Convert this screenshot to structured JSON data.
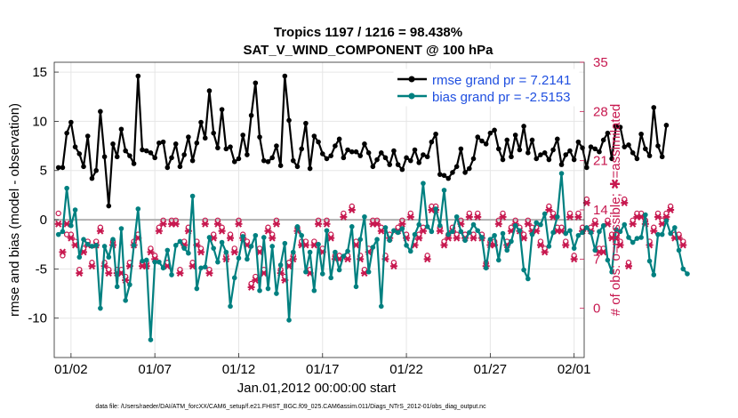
{
  "chart_data": {
    "type": "line",
    "title": "Tropics 1197 / 1216 = 98.438%",
    "subtitle": "SAT_V_WIND_COMPONENT @ 100 hPa",
    "xlabel": "Jan.01,2012 00:00:00 start",
    "ylabel": "rmse and bias (model - observation)",
    "ylabel_right": "# of obs: o=possible; ✱=assimilated",
    "ylim": [
      -14,
      16
    ],
    "ylim_right": [
      -7,
      35
    ],
    "x_range_days": [
      0,
      31.6
    ],
    "x_tick_labels": [
      {
        "day": 1,
        "label": "01/02"
      },
      {
        "day": 6,
        "label": "01/07"
      },
      {
        "day": 11,
        "label": "01/12"
      },
      {
        "day": 16,
        "label": "01/17"
      },
      {
        "day": 21,
        "label": "01/22"
      },
      {
        "day": 26,
        "label": "01/27"
      },
      {
        "day": 31,
        "label": "02/01"
      }
    ],
    "y_ticks": [
      -10,
      -5,
      0,
      5,
      10,
      15
    ],
    "y_ticks_right": [
      0,
      7,
      14,
      21,
      28,
      35
    ],
    "x_step_days": 0.25,
    "series": [
      {
        "name": "rmse grand pr = 7.2141",
        "color": "#000000",
        "values": [
          5.3,
          5.3,
          8.8,
          9.9,
          7.4,
          6.7,
          5.4,
          8.5,
          4.2,
          5.0,
          11.0,
          6.4,
          1.4,
          7.7,
          6.4,
          9.2,
          7.0,
          6.5,
          5.7,
          14.6,
          7.1,
          7.0,
          6.8,
          6.3,
          7.8,
          7.9,
          5.3,
          6.3,
          7.7,
          5.4,
          6.6,
          8.4,
          6.0,
          7.8,
          9.9,
          8.3,
          13.1,
          8.8,
          7.3,
          11.2,
          7.2,
          7.4,
          5.9,
          6.2,
          8.6,
          6.6,
          10.6,
          13.9,
          8.4,
          6.0,
          5.9,
          6.3,
          7.5,
          5.5,
          14.6,
          10.1,
          6.0,
          5.4,
          7.2,
          9.8,
          5.2,
          8.5,
          7.9,
          6.7,
          6.2,
          6.5,
          7.5,
          8.2,
          6.3,
          7.1,
          6.9,
          6.9,
          6.5,
          7.7,
          6.8,
          5.4,
          6.1,
          6.8,
          6.3,
          5.6,
          7.0,
          5.6,
          5.1,
          6.3,
          6.0,
          7.1,
          5.8,
          6.6,
          6.4,
          7.9,
          8.7,
          4.6,
          4.5,
          4.2,
          4.8,
          5.4,
          7.2,
          4.8,
          5.2,
          6.2,
          8.4,
          8.0,
          7.7,
          8.8,
          9.1,
          7.2,
          6.1,
          8.1,
          6.4,
          8.6,
          7.1,
          9.5,
          6.8,
          8.1,
          6.2,
          6.6,
          6.8,
          6.1,
          7.1,
          8.2,
          5.6,
          6.6,
          7.0,
          6.1,
          7.9,
          7.3,
          5.3,
          7.4,
          7.2,
          6.9,
          8.1,
          8.8,
          6.2,
          9.5,
          9.4,
          7.4,
          7.6,
          6.8,
          6.2,
          8.7,
          7.2,
          6.5,
          11.4,
          7.5,
          6.4,
          9.6
        ]
      },
      {
        "name": "bias grand pr = -2.5153",
        "color": "#008080",
        "values": [
          -1.5,
          -1.2,
          3.2,
          -0.6,
          1.0,
          -3.8,
          -2.0,
          -2.5,
          -2.7,
          -2.6,
          -9.0,
          -2.7,
          -3.8,
          -2.0,
          -6.8,
          -0.9,
          -8.2,
          -6.6,
          -2.6,
          1.1,
          -4.2,
          -4.1,
          -12.2,
          -4.3,
          -4.3,
          -4.9,
          -3.1,
          -5.6,
          -2.6,
          -2.2,
          -2.9,
          -3.4,
          2.4,
          -7.0,
          -4.9,
          -4.8,
          -1.8,
          -2.9,
          -4.3,
          -2.3,
          -3.3,
          -8.8,
          -5.9,
          -3.9,
          -1.7,
          -4.0,
          -2.7,
          -1.6,
          -7.2,
          -1.8,
          -7.0,
          -2.7,
          -7.5,
          -4.6,
          -2.4,
          -10.2,
          -3.3,
          -0.7,
          -1.6,
          -5.3,
          -3.3,
          -7.2,
          -2.5,
          -5.5,
          -1.1,
          -5.9,
          -3.3,
          -5.1,
          -3.7,
          -3.2,
          -0.7,
          -6.8,
          -2.0,
          0.3,
          -5.3,
          -2.8,
          -2.0,
          -8.8,
          -0.8,
          -2.1,
          -1.1,
          -1.3,
          -0.9,
          -2.6,
          -3.2,
          -1.5,
          -0.5,
          3.7,
          -0.7,
          -1.2,
          1.1,
          -0.6,
          3.0,
          -1.5,
          -1.2,
          0.3,
          -1.2,
          -2.1,
          -1.3,
          -0.5,
          -1.1,
          -1.8,
          -4.9,
          -2.0,
          -1.6,
          -4.1,
          -1.4,
          -3.1,
          -2.2,
          -0.6,
          -1.1,
          -5.1,
          -6.0,
          -1.5,
          -0.3,
          -0.5,
          0.6,
          -2.7,
          -1.3,
          0.3,
          4.7,
          -1.4,
          -1.1,
          -2.9,
          -1.6,
          -1.3,
          -0.8,
          -1.3,
          -3.1,
          -1.2,
          -0.6,
          -4.1,
          -5.3,
          -1.0,
          -1.2,
          -0.5,
          -1.8,
          -2.3,
          -1.9,
          -1.8,
          0.5,
          -4.2,
          -5.6,
          -1.5,
          -1.5,
          -0.1,
          -1.4,
          -0.8,
          -3.1,
          -5.0,
          -5.5
        ]
      }
    ],
    "obs_possible": [
      13,
      7,
      10,
      10,
      9,
      5,
      8,
      9,
      6,
      9,
      11,
      6,
      5,
      9,
      5,
      5,
      4,
      6,
      9,
      10,
      6,
      6,
      8,
      7,
      11,
      12,
      6,
      12,
      12,
      5,
      9,
      11,
      6,
      9,
      8,
      12,
      5,
      10,
      12,
      11,
      7,
      10,
      8,
      12,
      10,
      9,
      3,
      4,
      8,
      5,
      11,
      10,
      12,
      5,
      4,
      6,
      7,
      11,
      9,
      9,
      5,
      9,
      12,
      8,
      12,
      10,
      7,
      7,
      13,
      7,
      14,
      9,
      7,
      5,
      8,
      12,
      12,
      11,
      7,
      10,
      6,
      11,
      12,
      10,
      13,
      9,
      10,
      11,
      7,
      14,
      14,
      11,
      9,
      10,
      11,
      10,
      12,
      10,
      13,
      10,
      13,
      10,
      6,
      9,
      9,
      12,
      13,
      9,
      11,
      12,
      11,
      10,
      12,
      11,
      11,
      9,
      8,
      14,
      13,
      11,
      11,
      9,
      13,
      7,
      13,
      11,
      15,
      11,
      12,
      8,
      8,
      12,
      10,
      10,
      9,
      15,
      6,
      12,
      13,
      13,
      12,
      9,
      11,
      13,
      12,
      13,
      14,
      10,
      10,
      9
    ],
    "obs_assimilated": [
      12,
      8,
      12,
      10,
      9,
      5,
      8,
      9,
      6,
      9,
      11,
      6,
      5,
      9,
      5,
      5,
      4,
      6,
      9,
      10,
      6,
      6,
      8,
      7,
      11,
      12,
      6,
      12,
      12,
      5,
      9,
      11,
      6,
      9,
      8,
      12,
      5,
      10,
      12,
      11,
      7,
      10,
      8,
      12,
      10,
      9,
      3,
      4,
      8,
      5,
      11,
      10,
      12,
      5,
      4,
      6,
      7,
      11,
      9,
      9,
      5,
      9,
      12,
      8,
      12,
      10,
      7,
      7,
      13,
      7,
      14,
      9,
      7,
      5,
      8,
      12,
      12,
      11,
      7,
      10,
      6,
      11,
      12,
      10,
      13,
      9,
      10,
      11,
      7,
      14,
      14,
      11,
      9,
      10,
      11,
      10,
      12,
      10,
      13,
      10,
      13,
      10,
      6,
      9,
      9,
      12,
      13,
      9,
      11,
      12,
      11,
      10,
      12,
      11,
      11,
      9,
      8,
      14,
      13,
      11,
      11,
      9,
      13,
      7,
      13,
      11,
      15,
      11,
      12,
      8,
      8,
      12,
      10,
      10,
      9,
      15,
      6,
      12,
      13,
      13,
      12,
      9,
      11,
      13,
      12,
      13,
      14,
      10,
      10,
      9
    ],
    "obs_color": "#c7184f",
    "zero_line_color": "#b0b0b0",
    "legend_position": "top-right"
  },
  "footer": {
    "data_file": "data file: /Users/raeder/DAI/ATM_forcXX/CAM6_setup/f.e21.FHIST_BGC.f09_025.CAM6assim.011/Diags_NTrS_2012-01/obs_diag_output.nc"
  }
}
